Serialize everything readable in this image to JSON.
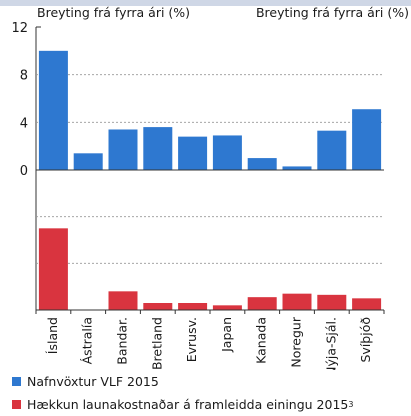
{
  "header": {
    "left_label": "Breyting frá fyrra ári (%)",
    "right_label": "Breyting frá fyrra ári (%)"
  },
  "colors": {
    "blue": "#2e78d0",
    "red": "#d9343f",
    "grid": "#999999",
    "axis": "#333333",
    "top_strip": "#cfd7e6"
  },
  "chart_data": {
    "type": "bar",
    "categories": [
      "Ísland",
      "Ástralía",
      "Bandar.",
      "Bretland",
      "Evrusv.",
      "Japan",
      "Kanada",
      "Noregur",
      "Nýja-Sjál.",
      "Svíþjóð"
    ],
    "y_ticks": [
      "12",
      "8",
      "4",
      "0"
    ],
    "ylim": [
      0,
      12
    ],
    "gridlines": [
      4,
      8
    ],
    "grid": true,
    "legend_position": "bottom-left",
    "series": [
      {
        "name": "Nafnvöxtur VLF 2015",
        "panel": "top",
        "color": "#2e78d0",
        "values": [
          10.0,
          1.4,
          3.4,
          3.6,
          2.8,
          2.9,
          1.0,
          0.3,
          3.3,
          5.1
        ]
      },
      {
        "name": "Hækkun launakostnaðar á framleidda einingu 2015",
        "name_superscript": "3",
        "panel": "bottom",
        "color": "#d9343f",
        "values": [
          7.0,
          0.0,
          1.6,
          0.6,
          0.6,
          0.4,
          1.1,
          1.4,
          1.3,
          1.0
        ]
      }
    ]
  }
}
